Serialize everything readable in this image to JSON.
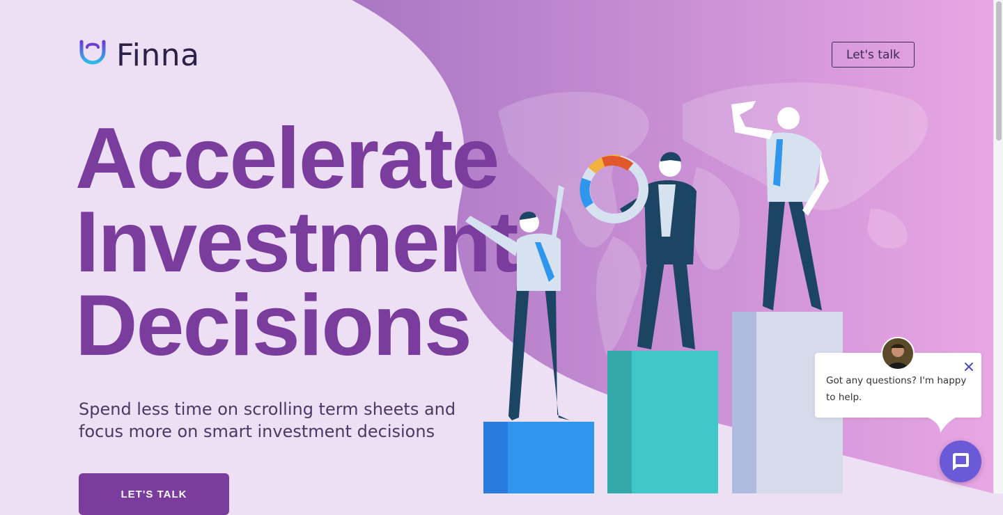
{
  "brand": {
    "name": "Finna"
  },
  "header": {
    "cta_label": "Let's talk"
  },
  "hero": {
    "headline_lines": [
      "Accelerate",
      "Investment",
      "Decisions"
    ],
    "subheadline": "Spend less time on scrolling term sheets and focus more on smart investment decisions",
    "cta_label": "LET'S TALK"
  },
  "chat": {
    "message": "Got any questions? I'm happy to help.",
    "close_icon": "close-icon",
    "launcher_icon": "chat-bubble-icon"
  },
  "colors": {
    "headline": "#7a3d9e",
    "background_light": "#ede0f4",
    "background_gradient_start": "#a977c4",
    "background_gradient_end": "#e8a6e4",
    "chat_launcher": "#6a5ad8"
  }
}
